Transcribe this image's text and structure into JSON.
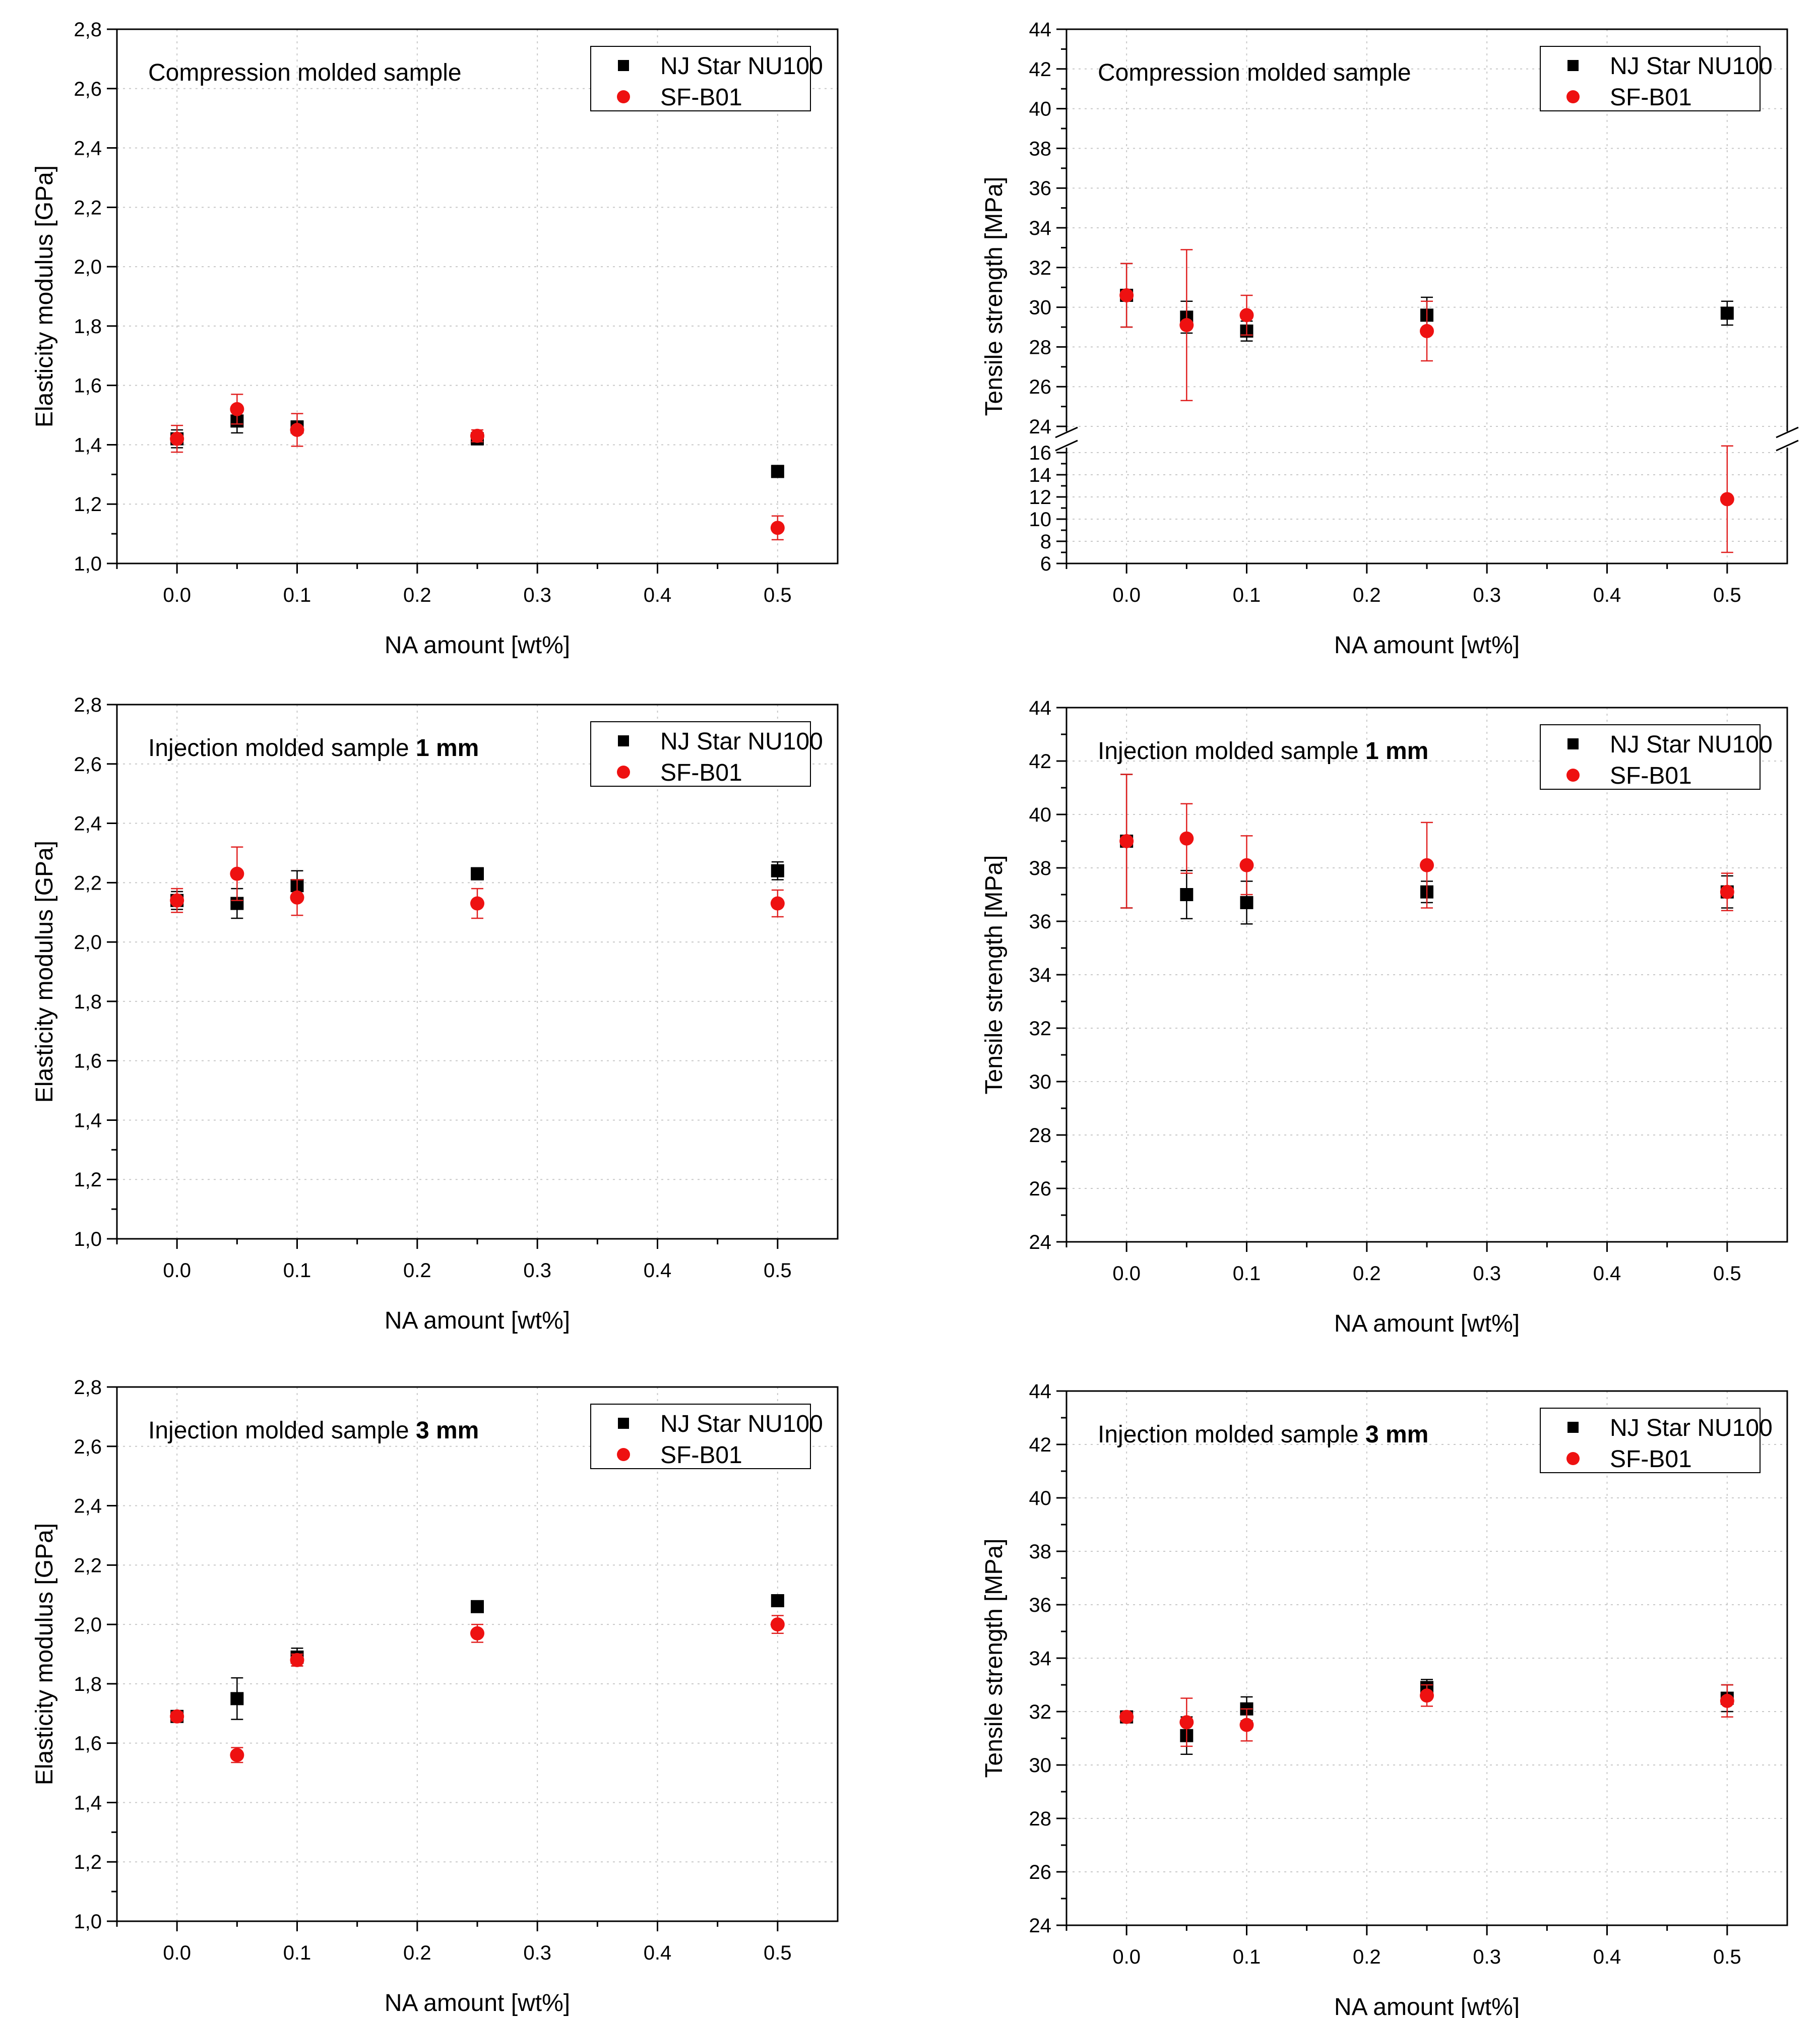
{
  "colors": {
    "black": "#000000",
    "red": "#ee1111",
    "grid": "#c8c8c8",
    "red_err": "#e02020"
  },
  "chart_data": [
    {
      "id": "cm-modulus",
      "type": "scatter",
      "annotation": {
        "text": "Compression molded sample",
        "bold": ""
      },
      "xlabel": "NA amount [wt%]",
      "ylabel": "Elasticity modulus [GPa]",
      "xlim": [
        -0.05,
        0.55
      ],
      "ylim": [
        1.0,
        2.8
      ],
      "xticks": [
        "0.0",
        "0.1",
        "0.2",
        "0.3",
        "0.4",
        "0.5"
      ],
      "yticks": [
        "1,0",
        "1,2",
        "1,4",
        "1,6",
        "1,8",
        "2,0",
        "2,2",
        "2,4",
        "2,6",
        "2,8"
      ],
      "grid": true,
      "legend_position": "top-right",
      "series": [
        {
          "name": "NJ Star NU100",
          "marker": "square",
          "color": "#000000",
          "x": [
            0.0,
            0.05,
            0.1,
            0.25,
            0.5
          ],
          "y": [
            1.42,
            1.48,
            1.46,
            1.42,
            1.31
          ],
          "err": [
            0.03,
            0.04,
            0.02,
            0.02,
            0.02
          ]
        },
        {
          "name": "SF-B01",
          "marker": "circle",
          "color": "#ee1111",
          "x": [
            0.0,
            0.05,
            0.1,
            0.25,
            0.5
          ],
          "y": [
            1.42,
            1.52,
            1.45,
            1.43,
            1.12
          ],
          "err": [
            0.045,
            0.05,
            0.055,
            0.02,
            0.04
          ]
        }
      ]
    },
    {
      "id": "cm-tensile",
      "type": "scatter",
      "annotation": {
        "text": "Compression molded sample",
        "bold": ""
      },
      "xlabel": "NA amount [wt%]",
      "ylabel": "Tensile strength [MPa]",
      "xlim": [
        -0.05,
        0.55
      ],
      "broken_axis": true,
      "upper_range": [
        24,
        44
      ],
      "lower_range": [
        6,
        16
      ],
      "xticks": [
        "0.0",
        "0.1",
        "0.2",
        "0.3",
        "0.4",
        "0.5"
      ],
      "yticks_upper": [
        "24",
        "26",
        "28",
        "30",
        "32",
        "34",
        "36",
        "38",
        "40",
        "42",
        "44"
      ],
      "yticks_lower": [
        "6",
        "8",
        "10",
        "12",
        "14",
        "16"
      ],
      "grid": true,
      "legend_position": "top-right",
      "series": [
        {
          "name": "NJ Star NU100",
          "marker": "square",
          "color": "#000000",
          "x": [
            0.0,
            0.05,
            0.1,
            0.25,
            0.5
          ],
          "y": [
            30.6,
            29.5,
            28.8,
            29.6,
            29.7
          ],
          "err": [
            1.6,
            0.8,
            0.5,
            0.9,
            0.6
          ]
        },
        {
          "name": "SF-B01",
          "marker": "circle",
          "color": "#ee1111",
          "x": [
            0.0,
            0.05,
            0.1,
            0.25,
            0.5
          ],
          "y": [
            30.6,
            29.1,
            29.6,
            28.8,
            11.8
          ],
          "err": [
            1.6,
            3.8,
            1.0,
            1.5,
            4.8
          ]
        }
      ]
    },
    {
      "id": "im1-modulus",
      "type": "scatter",
      "annotation": {
        "text": "Injection molded sample ",
        "bold": "1 mm"
      },
      "xlabel": "NA amount [wt%]",
      "ylabel": "Elasticity modulus [GPa]",
      "xlim": [
        -0.05,
        0.55
      ],
      "ylim": [
        1.0,
        2.8
      ],
      "xticks": [
        "0.0",
        "0.1",
        "0.2",
        "0.3",
        "0.4",
        "0.5"
      ],
      "yticks": [
        "1,0",
        "1,2",
        "1,4",
        "1,6",
        "1,8",
        "2,0",
        "2,2",
        "2,4",
        "2,6",
        "2,8"
      ],
      "grid": true,
      "legend_position": "top-right",
      "series": [
        {
          "name": "NJ Star NU100",
          "marker": "square",
          "color": "#000000",
          "x": [
            0.0,
            0.05,
            0.1,
            0.25,
            0.5
          ],
          "y": [
            2.14,
            2.13,
            2.19,
            2.23,
            2.24
          ],
          "err": [
            0.03,
            0.05,
            0.05,
            0.02,
            0.03
          ]
        },
        {
          "name": "SF-B01",
          "marker": "circle",
          "color": "#ee1111",
          "x": [
            0.0,
            0.05,
            0.1,
            0.25,
            0.5
          ],
          "y": [
            2.14,
            2.23,
            2.15,
            2.13,
            2.13
          ],
          "err": [
            0.04,
            0.09,
            0.06,
            0.05,
            0.045
          ]
        }
      ]
    },
    {
      "id": "im1-tensile",
      "type": "scatter",
      "annotation": {
        "text": "Injection molded sample ",
        "bold": "1 mm"
      },
      "xlabel": "NA amount [wt%]",
      "ylabel": "Tensile strength [MPa]",
      "xlim": [
        -0.05,
        0.55
      ],
      "ylim": [
        24,
        44
      ],
      "xticks": [
        "0.0",
        "0.1",
        "0.2",
        "0.3",
        "0.4",
        "0.5"
      ],
      "yticks": [
        "24",
        "26",
        "28",
        "30",
        "32",
        "34",
        "36",
        "38",
        "40",
        "42",
        "44"
      ],
      "grid": true,
      "legend_position": "top-right",
      "series": [
        {
          "name": "NJ Star NU100",
          "marker": "square",
          "color": "#000000",
          "x": [
            0.0,
            0.05,
            0.1,
            0.25,
            0.5
          ],
          "y": [
            39.0,
            37.0,
            36.7,
            37.1,
            37.1
          ],
          "err": [
            2.5,
            0.9,
            0.8,
            0.4,
            0.6
          ]
        },
        {
          "name": "SF-B01",
          "marker": "circle",
          "color": "#ee1111",
          "x": [
            0.0,
            0.05,
            0.1,
            0.25,
            0.5
          ],
          "y": [
            39.0,
            39.1,
            38.1,
            38.1,
            37.1
          ],
          "err": [
            2.5,
            1.3,
            1.1,
            1.6,
            0.7
          ]
        }
      ]
    },
    {
      "id": "im3-modulus",
      "type": "scatter",
      "annotation": {
        "text": "Injection molded sample ",
        "bold": "3 mm"
      },
      "xlabel": "NA amount [wt%]",
      "ylabel": "Elasticity modulus [GPa]",
      "xlim": [
        -0.05,
        0.55
      ],
      "ylim": [
        1.0,
        2.8
      ],
      "xticks": [
        "0.0",
        "0.1",
        "0.2",
        "0.3",
        "0.4",
        "0.5"
      ],
      "yticks": [
        "1,0",
        "1,2",
        "1,4",
        "1,6",
        "1,8",
        "2,0",
        "2,2",
        "2,4",
        "2,6",
        "2,8"
      ],
      "grid": true,
      "legend_position": "top-right",
      "series": [
        {
          "name": "NJ Star NU100",
          "marker": "square",
          "color": "#000000",
          "x": [
            0.0,
            0.05,
            0.1,
            0.25,
            0.5
          ],
          "y": [
            1.69,
            1.75,
            1.89,
            2.06,
            2.08
          ],
          "err": [
            0.015,
            0.07,
            0.03,
            0.01,
            0.01
          ]
        },
        {
          "name": "SF-B01",
          "marker": "circle",
          "color": "#ee1111",
          "x": [
            0.0,
            0.05,
            0.1,
            0.25,
            0.5
          ],
          "y": [
            1.69,
            1.56,
            1.88,
            1.97,
            2.0
          ],
          "err": [
            0.015,
            0.025,
            0.02,
            0.03,
            0.03
          ]
        }
      ]
    },
    {
      "id": "im3-tensile",
      "type": "scatter",
      "annotation": {
        "text": "Injection molded sample ",
        "bold": "3 mm"
      },
      "xlabel": "NA amount [wt%]",
      "ylabel": "Tensile strength [MPa]",
      "xlim": [
        -0.05,
        0.55
      ],
      "ylim": [
        24,
        44
      ],
      "xticks": [
        "0.0",
        "0.1",
        "0.2",
        "0.3",
        "0.4",
        "0.5"
      ],
      "yticks": [
        "24",
        "26",
        "28",
        "30",
        "32",
        "34",
        "36",
        "38",
        "40",
        "42",
        "44"
      ],
      "grid": true,
      "legend_position": "top-right",
      "series": [
        {
          "name": "NJ Star NU100",
          "marker": "square",
          "color": "#000000",
          "x": [
            0.0,
            0.05,
            0.1,
            0.25,
            0.5
          ],
          "y": [
            31.8,
            31.1,
            32.1,
            32.9,
            32.5
          ],
          "err": [
            0.15,
            0.7,
            0.45,
            0.3,
            0.5
          ]
        },
        {
          "name": "SF-B01",
          "marker": "circle",
          "color": "#ee1111",
          "x": [
            0.0,
            0.05,
            0.1,
            0.25,
            0.5
          ],
          "y": [
            31.8,
            31.6,
            31.5,
            32.6,
            32.4
          ],
          "err": [
            0.15,
            0.9,
            0.6,
            0.4,
            0.6
          ]
        }
      ]
    }
  ]
}
